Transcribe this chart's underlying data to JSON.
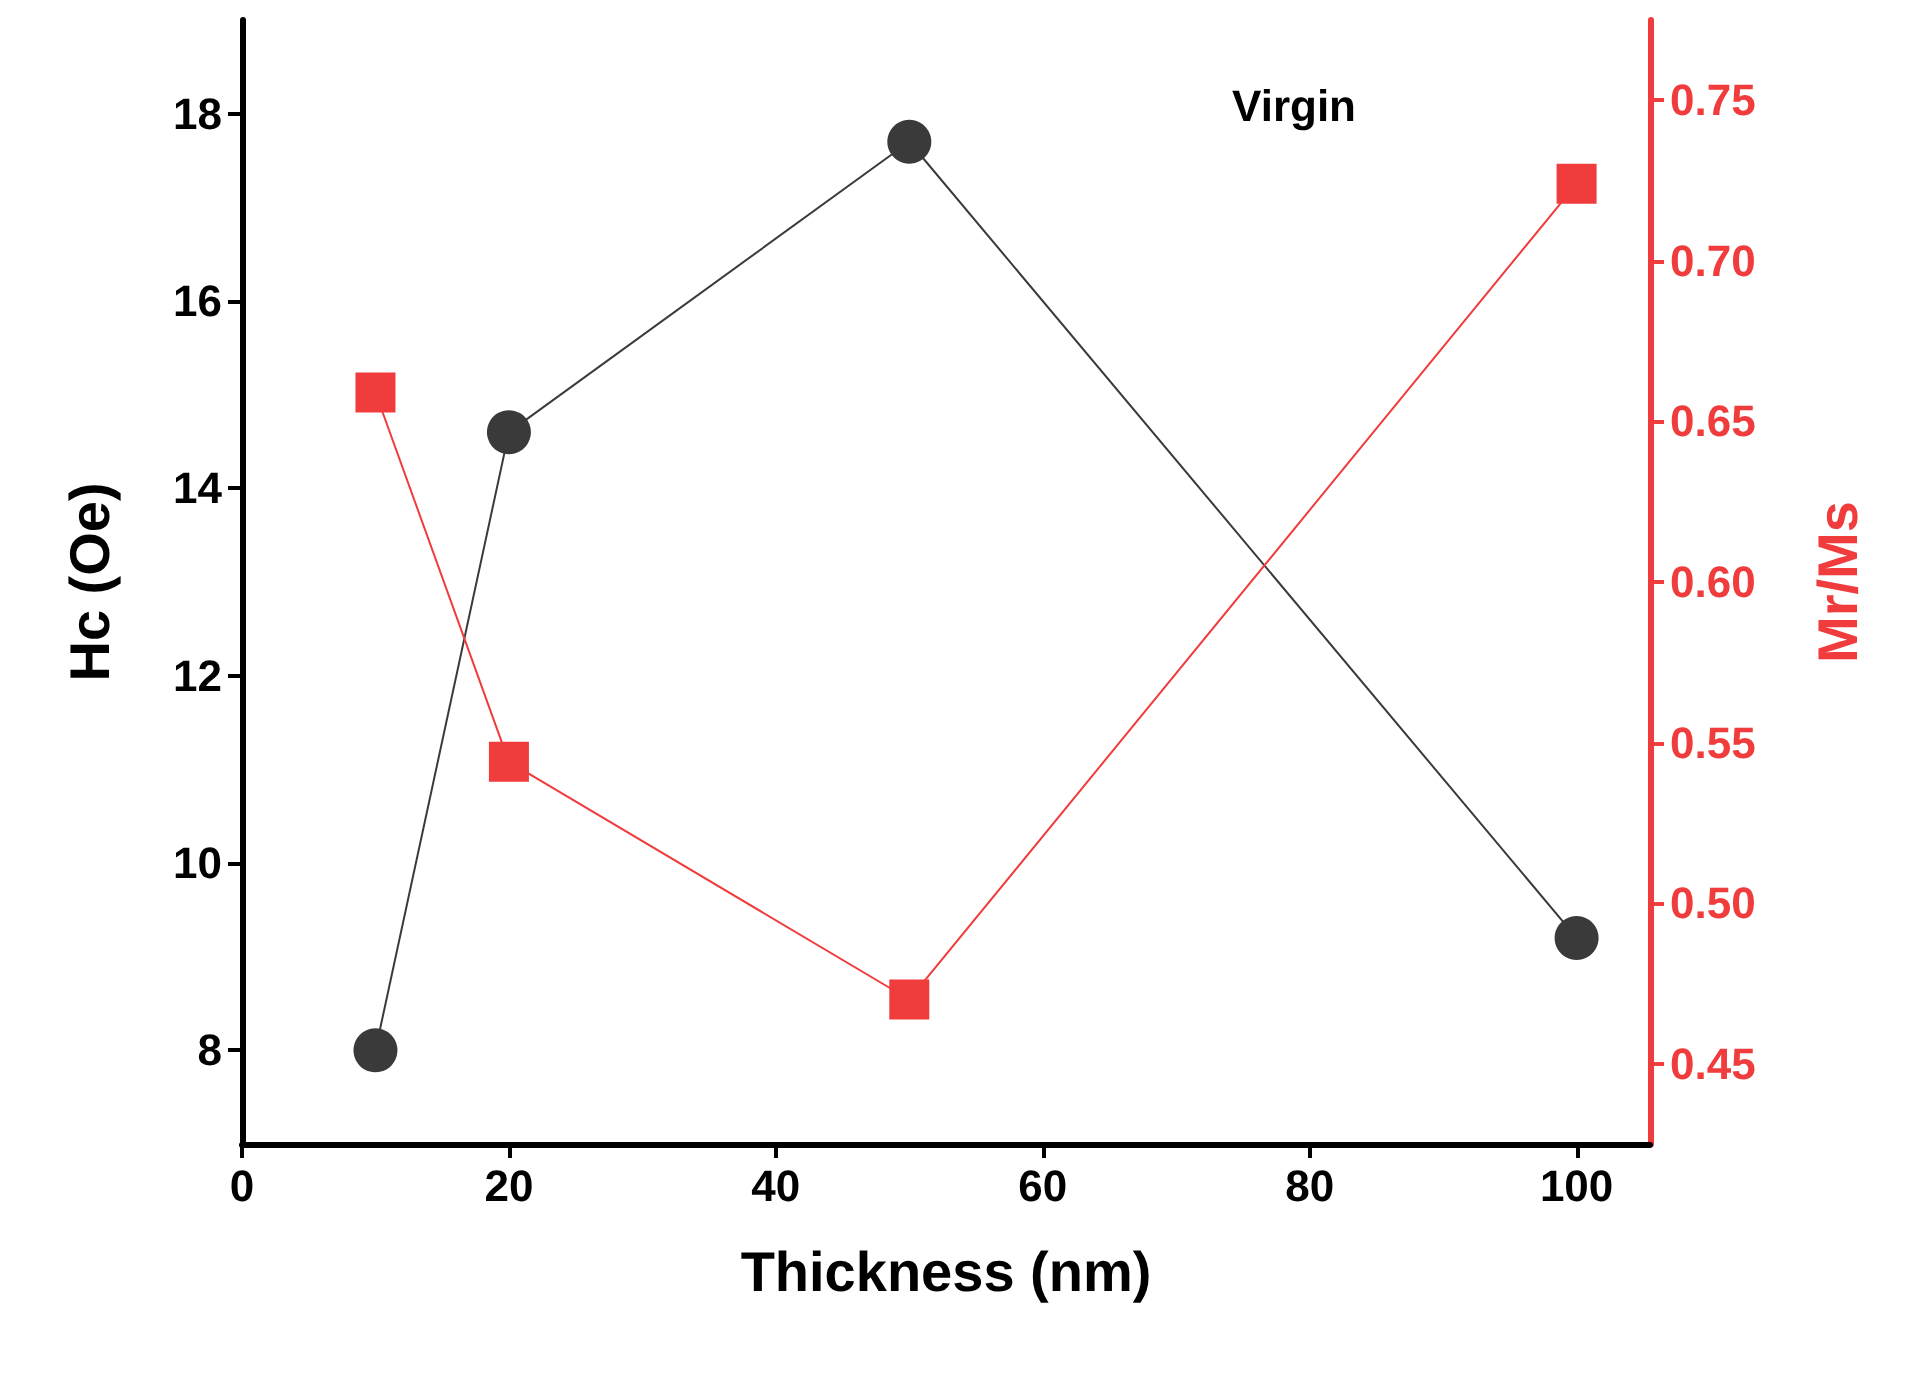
{
  "chart_data": {
    "type": "line",
    "xlabel": "Thickness (nm)",
    "ylabel": "Hc (Oe)",
    "y2label": "Mr/Ms",
    "annotations": [
      "Virgin"
    ],
    "x": [
      10,
      20,
      50,
      100
    ],
    "series": [
      {
        "color": "#3a3a3a",
        "marker": "circle",
        "values": [
          8.0,
          14.6,
          17.7,
          9.2
        ]
      },
      {
        "color": "#f03c3c",
        "marker": "square",
        "axis": "y2",
        "values": [
          0.659,
          0.544,
          0.47,
          0.724
        ]
      }
    ],
    "xlim": [
      0,
      105.5
    ],
    "xticks": [
      0,
      20,
      40,
      60,
      80,
      100
    ],
    "ylim": [
      7,
      19
    ],
    "yticks": [
      8,
      10,
      12,
      14,
      16,
      18
    ],
    "y2lim": [
      0.425,
      0.775
    ],
    "y2ticks": [
      0.45,
      {
        "value": 0.5,
        "label": "0.50"
      },
      0.55,
      {
        "value": 0.6,
        "label": "0.60"
      },
      0.65,
      {
        "value": 0.7,
        "label": "0.70"
      },
      0.75
    ],
    "grid": false,
    "line_style": "solid"
  }
}
